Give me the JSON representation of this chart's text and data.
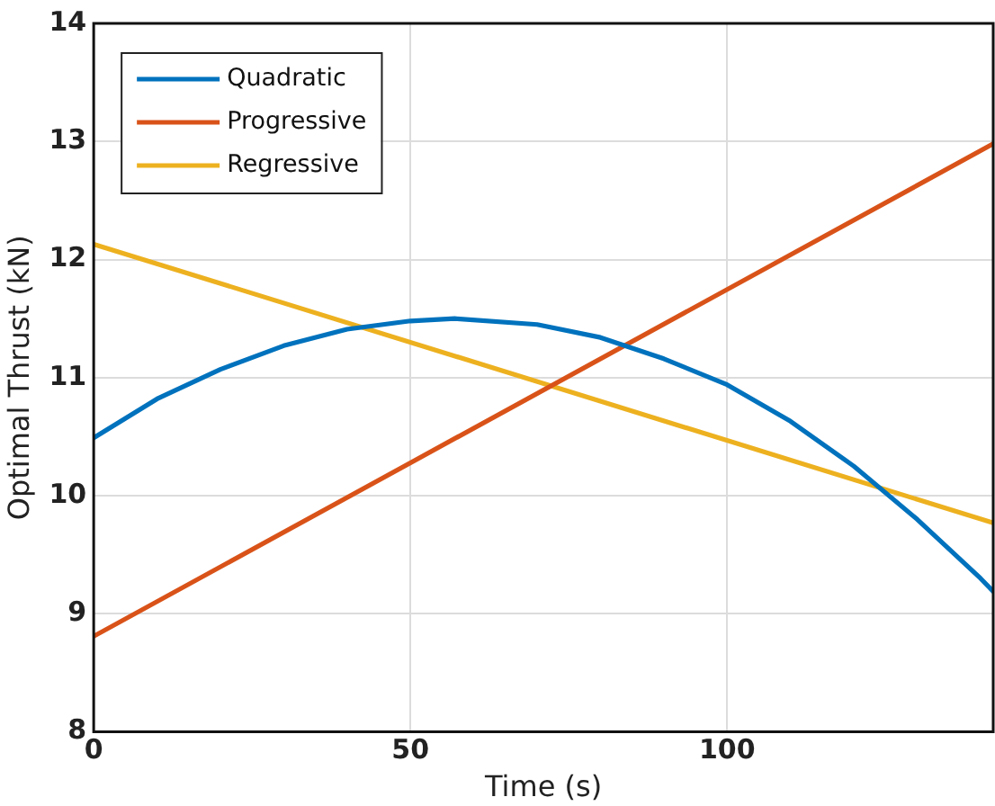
{
  "chart_data": {
    "type": "line",
    "xlabel": "Time (s)",
    "ylabel": "Optimal Thrust (kN)",
    "xlim": [
      0,
      142
    ],
    "xticks": [
      0,
      50,
      100
    ],
    "ylim": [
      8,
      14
    ],
    "yticks": [
      8,
      9,
      10,
      11,
      12,
      13,
      14
    ],
    "grid": true,
    "legend": "top left",
    "marker": "none",
    "line_style": "solid",
    "series": [
      {
        "name": "Quadratic",
        "color": "#0072bd",
        "x": [
          0,
          10,
          20,
          30,
          40,
          50,
          57,
          70,
          80,
          90,
          100,
          110,
          120,
          130,
          140,
          142
        ],
        "values": [
          10.49,
          10.82,
          11.07,
          11.27,
          11.41,
          11.48,
          11.5,
          11.45,
          11.34,
          11.16,
          10.94,
          10.63,
          10.25,
          9.8,
          9.3,
          9.19
        ]
      },
      {
        "name": "Progressive",
        "color": "#d95319",
        "x": [
          0,
          142
        ],
        "values": [
          8.81,
          12.98
        ]
      },
      {
        "name": "Regressive",
        "color": "#edb120",
        "x": [
          0,
          142
        ],
        "values": [
          12.13,
          9.77
        ]
      }
    ]
  }
}
